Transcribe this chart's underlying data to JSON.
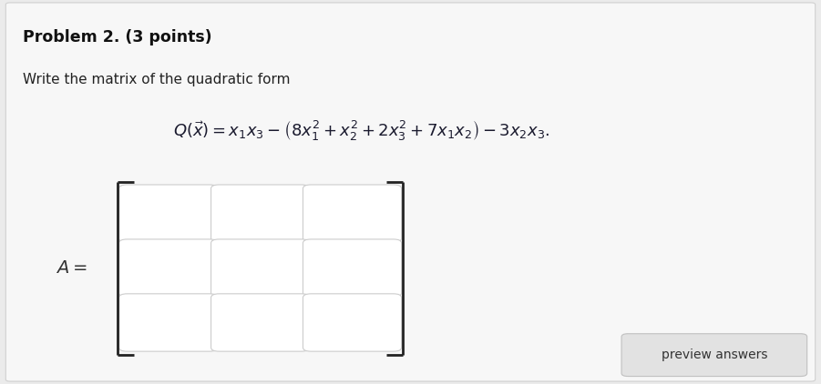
{
  "background_color": "#ebebeb",
  "inner_bg_color": "#f7f7f7",
  "title_text": "Problem 2. (3 points)",
  "subtitle_text": "Write the matrix of the quadratic form",
  "button_text": "preview answers",
  "button_bg": "#e2e2e2",
  "button_border": "#c0c0c0",
  "cell_bg": "#ffffff",
  "cell_border": "#cccccc",
  "eq_color": "#1a1a2e",
  "title_color": "#111111",
  "subtitle_color": "#222222",
  "matrix_label_color": "#333333",
  "bracket_color": "#222222",
  "n_rows": 3,
  "n_cols": 3,
  "title_fontsize": 12.5,
  "subtitle_fontsize": 11,
  "eq_fontsize": 13,
  "label_fontsize": 13,
  "button_fontsize": 10
}
